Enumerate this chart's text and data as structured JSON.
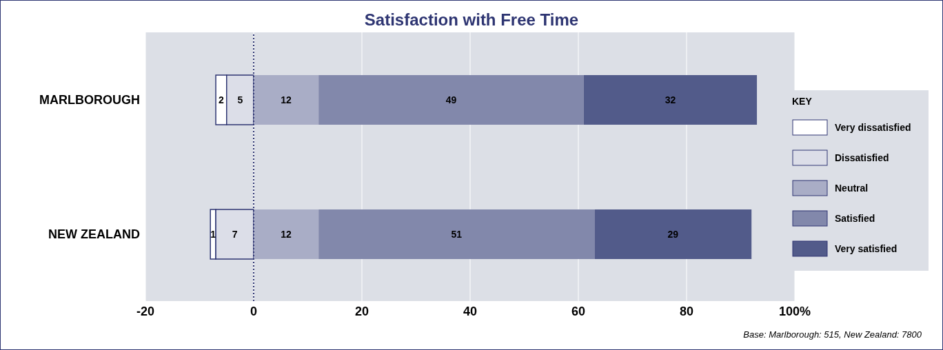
{
  "chart_data": {
    "type": "bar",
    "title": "Satisfaction with Free Time",
    "orientation": "horizontal",
    "categories": [
      "MARLBOROUGH",
      "NEW ZEALAND"
    ],
    "series": [
      {
        "name": "Very dissatisfied",
        "color": "#ffffff",
        "values": [
          2,
          1
        ],
        "base": [
          -7,
          -8
        ]
      },
      {
        "name": "Dissatisfied",
        "color": "#dcdee8",
        "values": [
          5,
          7
        ],
        "base": [
          -5,
          -7
        ]
      },
      {
        "name": "Neutral",
        "color": "#a9adc6",
        "values": [
          12,
          12
        ],
        "base": [
          0,
          0
        ]
      },
      {
        "name": "Satisfied",
        "color": "#8288ab",
        "values": [
          49,
          51
        ],
        "base": [
          12,
          12
        ]
      },
      {
        "name": "Very satisfied",
        "color": "#525b8a",
        "values": [
          32,
          29
        ],
        "base": [
          61,
          63
        ]
      }
    ],
    "xlim": [
      -20,
      100
    ],
    "xticks": [
      -20,
      0,
      20,
      40,
      60,
      80,
      {
        "value": 100,
        "label": "100%"
      }
    ],
    "grid": "x",
    "legend": "right",
    "legend_title": "KEY",
    "data_labels": true,
    "ref_lines": [
      {
        "axis": "x",
        "value": 0,
        "line_style": "dotted",
        "color": "#2e3572"
      }
    ],
    "annotations": [
      "Base:  Marlborough: 515, New Zealand: 7800"
    ]
  }
}
